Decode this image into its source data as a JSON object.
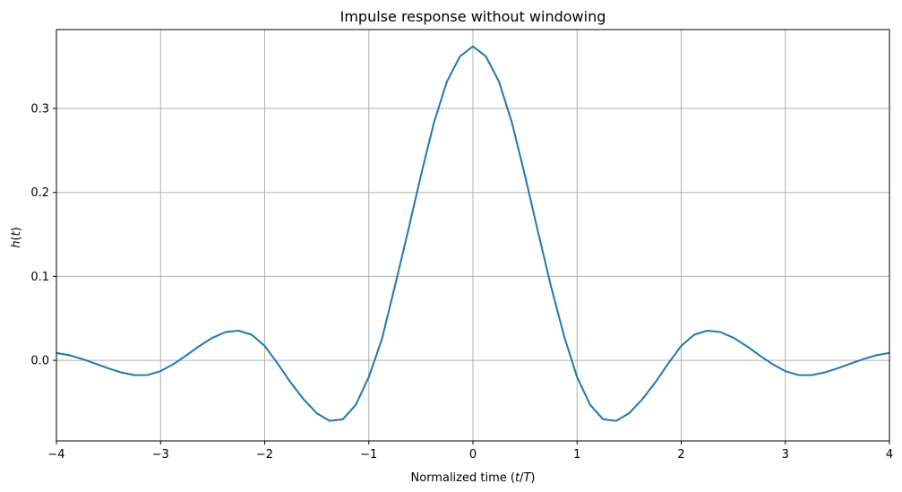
{
  "chart_data": {
    "type": "line",
    "title": "Impulse response without windowing",
    "xlabel_parts": [
      "Normalized time (",
      "t",
      "/",
      "T",
      ")"
    ],
    "ylabel_parts": [
      "h",
      "(",
      "t",
      ")"
    ],
    "xlim": [
      -4,
      4
    ],
    "ylim": [
      -0.096,
      0.394
    ],
    "xticks": [
      -4,
      -3,
      -2,
      -1,
      0,
      1,
      2,
      3,
      4
    ],
    "xtick_labels": [
      "−4",
      "−3",
      "−2",
      "−1",
      "0",
      "1",
      "2",
      "3",
      "4"
    ],
    "yticks": [
      0.0,
      0.1,
      0.2,
      0.3
    ],
    "ytick_labels": [
      "0.0",
      "0.1",
      "0.2",
      "0.3"
    ],
    "grid": true,
    "colors": {
      "line": "#1f77b4",
      "grid": "#b0b0b0",
      "axes": "#000000"
    },
    "series": [
      {
        "x": [
          -4.0,
          -3.875,
          -3.75,
          -3.625,
          -3.5,
          -3.375,
          -3.25,
          -3.125,
          -3.0,
          -2.875,
          -2.75,
          -2.625,
          -2.5,
          -2.375,
          -2.25,
          -2.125,
          -2.0,
          -1.875,
          -1.75,
          -1.625,
          -1.5,
          -1.375,
          -1.25,
          -1.125,
          -1.0,
          -0.875,
          -0.75,
          -0.625,
          -0.5,
          -0.375,
          -0.25,
          -0.125,
          0.0,
          0.125,
          0.25,
          0.375,
          0.5,
          0.625,
          0.75,
          0.875,
          1.0,
          1.125,
          1.25,
          1.375,
          1.5,
          1.625,
          1.75,
          1.875,
          2.0,
          2.125,
          2.25,
          2.375,
          2.5,
          2.625,
          2.75,
          2.875,
          3.0,
          3.125,
          3.25,
          3.375,
          3.5,
          3.625,
          3.75,
          3.875,
          4.0
        ],
        "y": [
          0.0087,
          0.0061,
          0.0015,
          -0.004,
          -0.0096,
          -0.0145,
          -0.0177,
          -0.0175,
          -0.0129,
          -0.0045,
          0.0062,
          0.0172,
          0.027,
          0.0337,
          0.0353,
          0.0305,
          0.0172,
          -0.0039,
          -0.0265,
          -0.0466,
          -0.063,
          -0.0721,
          -0.0703,
          -0.053,
          -0.0199,
          0.025,
          0.088,
          0.153,
          0.22,
          0.283,
          0.332,
          0.362,
          0.374,
          0.362,
          0.332,
          0.283,
          0.22,
          0.153,
          0.088,
          0.029,
          -0.0199,
          -0.053,
          -0.0703,
          -0.0721,
          -0.063,
          -0.0466,
          -0.0265,
          -0.0039,
          0.0172,
          0.0305,
          0.0353,
          0.0337,
          0.027,
          0.0172,
          0.0062,
          -0.0045,
          -0.0129,
          -0.0175,
          -0.0177,
          -0.0145,
          -0.0096,
          -0.004,
          0.0015,
          0.0061,
          0.0087
        ]
      }
    ]
  }
}
